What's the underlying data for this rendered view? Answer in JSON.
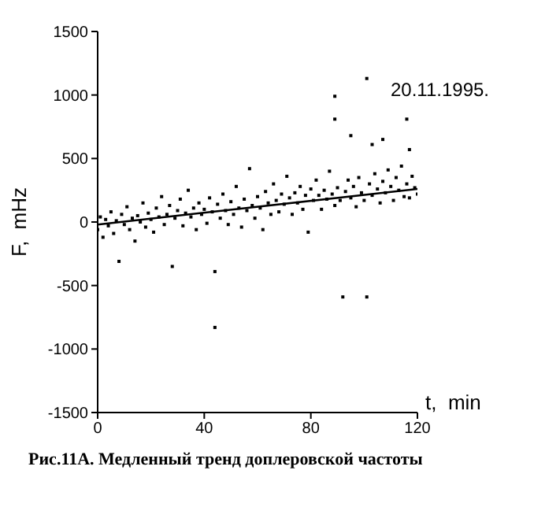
{
  "chart_data": {
    "type": "scatter",
    "title": "Рис.11А. Медленный тренд доплеровской частоты",
    "xlabel": "t,  min",
    "ylabel": "F,  mHz",
    "annotations": [
      "20.11.1995."
    ],
    "xlim": [
      0,
      120
    ],
    "xticks": [
      0,
      40,
      80,
      120
    ],
    "ylim": [
      -1500,
      1500
    ],
    "yticks": [
      -1500,
      -1000,
      -500,
      0,
      500,
      1000,
      1500
    ],
    "marker": "square",
    "series": [
      {
        "color": "#000000",
        "x": [
          0,
          1,
          2,
          3,
          4,
          5,
          6,
          7,
          8,
          9,
          10,
          11,
          12,
          13,
          14,
          15,
          16,
          17,
          18,
          19,
          20,
          21,
          22,
          23,
          24,
          25,
          26,
          27,
          28,
          29,
          30,
          31,
          32,
          33,
          34,
          35,
          36,
          37,
          38,
          39,
          40,
          41,
          42,
          43,
          44,
          44,
          45,
          46,
          47,
          48,
          49,
          50,
          51,
          52,
          53,
          54,
          55,
          56,
          57,
          58,
          59,
          60,
          61,
          62,
          63,
          64,
          65,
          66,
          67,
          68,
          69,
          70,
          71,
          72,
          73,
          74,
          75,
          76,
          77,
          78,
          79,
          80,
          81,
          82,
          83,
          84,
          85,
          86,
          87,
          88,
          89,
          89,
          89,
          90,
          91,
          92,
          93,
          94,
          95,
          95,
          96,
          97,
          98,
          99,
          100,
          101,
          101,
          102,
          103,
          103,
          104,
          105,
          106,
          107,
          107,
          108,
          109,
          110,
          111,
          112,
          113,
          114,
          115,
          116,
          116,
          117,
          117,
          118,
          119,
          120
        ],
        "values": [
          -60,
          40,
          -120,
          20,
          -30,
          80,
          -90,
          10,
          -310,
          60,
          -20,
          120,
          -60,
          30,
          -150,
          50,
          0,
          150,
          -40,
          70,
          20,
          -80,
          110,
          40,
          200,
          -20,
          60,
          130,
          -350,
          30,
          90,
          180,
          -30,
          70,
          250,
          40,
          110,
          -60,
          150,
          60,
          100,
          -10,
          190,
          80,
          -390,
          -830,
          140,
          30,
          220,
          90,
          -20,
          160,
          60,
          280,
          110,
          -40,
          180,
          90,
          420,
          130,
          30,
          200,
          110,
          -60,
          240,
          150,
          60,
          300,
          170,
          80,
          220,
          140,
          360,
          190,
          60,
          230,
          150,
          280,
          100,
          210,
          -80,
          260,
          170,
          330,
          210,
          100,
          250,
          180,
          400,
          220,
          990,
          810,
          130,
          270,
          170,
          -590,
          240,
          330,
          680,
          190,
          280,
          120,
          350,
          230,
          170,
          1130,
          -590,
          300,
          610,
          210,
          380,
          260,
          150,
          650,
          320,
          230,
          410,
          280,
          170,
          350,
          250,
          440,
          200,
          810,
          300,
          570,
          190,
          360,
          270,
          220
        ]
      },
      {
        "type": "line",
        "color": "#000000",
        "x": [
          0,
          120
        ],
        "values": [
          -20,
          260
        ],
        "line_style": "solid",
        "marker": "none"
      }
    ]
  }
}
